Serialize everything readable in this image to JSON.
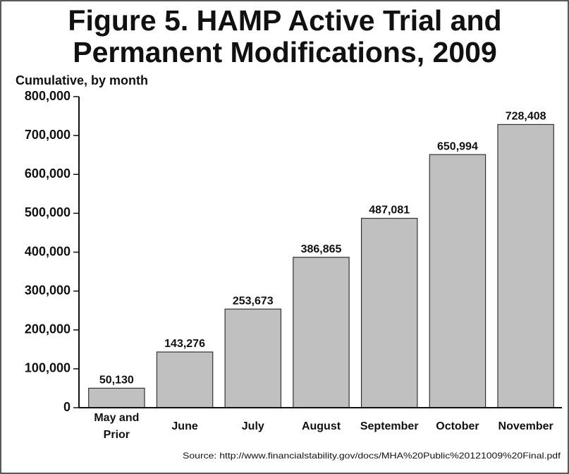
{
  "chart_data": {
    "type": "bar",
    "title": "Figure 5.  HAMP Active Trial and Permanent Modifications, 2009",
    "y_axis_label": "Cumulative, by month",
    "categories": [
      "May and Prior",
      "June",
      "July",
      "August",
      "September",
      "October",
      "November"
    ],
    "values": [
      50130,
      143276,
      253673,
      386865,
      487081,
      650994,
      728408
    ],
    "value_labels": [
      "50,130",
      "143,276",
      "253,673",
      "386,865",
      "487,081",
      "650,994",
      "728,408"
    ],
    "color": "#c0c0c0",
    "ylim": [
      0,
      800000
    ],
    "yticks": [
      0,
      {
        "value": 100000,
        "label": "100,000"
      },
      {
        "value": 200000,
        "label": "200,000"
      },
      {
        "value": 300000,
        "label": "300,000"
      },
      {
        "value": 400000,
        "label": "400,000"
      },
      {
        "value": 500000,
        "label": "500,000"
      },
      {
        "value": 600000,
        "label": "600,000"
      },
      {
        "value": 700000,
        "label": "700,000"
      },
      {
        "value": 800000,
        "label": "800,000"
      }
    ],
    "grid": false,
    "source": "Source:  http://www.financialstability.gov/docs/MHA%20Public%20121009%20Final.pdf"
  }
}
